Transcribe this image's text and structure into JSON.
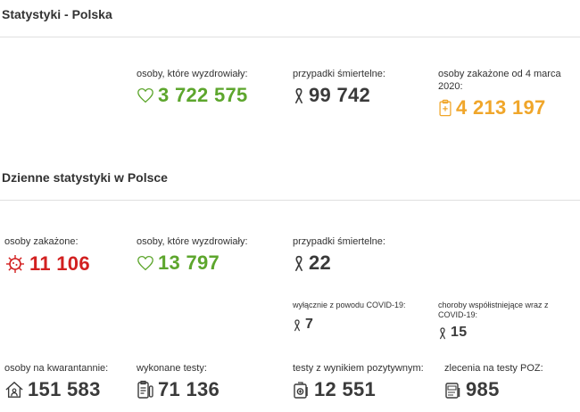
{
  "colors": {
    "green": "#5da62d",
    "dark": "#3a3a3a",
    "orange": "#f0a62a",
    "red": "#d22020"
  },
  "poland": {
    "title": "Statystyki - Polska",
    "recovered": {
      "label": "osoby, które wyzdrowiały:",
      "value": "3 722 575",
      "icon": "heart-icon"
    },
    "deaths": {
      "label": "przypadki śmiertelne:",
      "value": "99 742",
      "icon": "ribbon-icon"
    },
    "infected": {
      "label": "osoby zakażone od 4 marca 2020:",
      "value": "4 213 197",
      "icon": "clipboard-medical-icon"
    }
  },
  "daily": {
    "title": "Dzienne statystyki w Polsce",
    "infected": {
      "label": "osoby zakażone:",
      "value": "11 106",
      "icon": "virus-icon"
    },
    "recovered": {
      "label": "osoby, które wyzdrowiały:",
      "value": "13 797",
      "icon": "heart-icon"
    },
    "deaths": {
      "label": "przypadki śmiertelne:",
      "value": "22",
      "icon": "ribbon-icon"
    },
    "deaths_covid_only": {
      "label": "wyłącznie z powodu COVID-19:",
      "value": "7",
      "icon": "ribbon-icon"
    },
    "deaths_comorbid": {
      "label": "choroby współistniejące wraz z COVID-19:",
      "value": "15",
      "icon": "ribbon-icon"
    },
    "quarantine": {
      "label": "osoby na kwarantannie:",
      "value": "151 583",
      "icon": "home-person-icon"
    },
    "tests": {
      "label": "wykonane testy:",
      "value": "71 136",
      "icon": "test-clipboard-icon"
    },
    "positive_tests": {
      "label": "testy z wynikiem pozytywnym:",
      "value": "12 551",
      "icon": "positive-test-icon"
    },
    "poz_orders": {
      "label": "zlecenia na testy POZ:",
      "value": "985",
      "icon": "poz-card-icon"
    }
  }
}
